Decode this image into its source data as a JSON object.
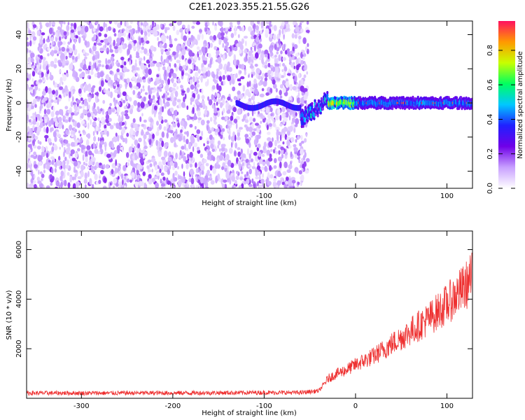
{
  "title": "C2E1.2023.355.21.55.G26",
  "chart_data": [
    {
      "type": "heatmap",
      "xlabel": "Height of straight line (km)",
      "ylabel": "Frequency (Hz)",
      "xlim": [
        -360,
        128
      ],
      "ylim": [
        -50,
        48
      ],
      "x_ticks": [
        -300,
        -200,
        -100,
        0,
        100
      ],
      "y_ticks": [
        -40,
        -20,
        0,
        20,
        40
      ],
      "grid": false,
      "colorbar": {
        "label": "Normalized spectral amplitude",
        "range": [
          0,
          0.97
        ],
        "ticks": [
          0.0,
          0.2,
          0.4,
          0.6,
          0.8
        ],
        "colormap": [
          "#ffffff",
          "#c8a0ff",
          "#7000e8",
          "#2020ff",
          "#00c8ff",
          "#00ff60",
          "#c8ff00",
          "#ff9900",
          "#ff1060"
        ]
      },
      "regions": [
        {
          "name": "noise",
          "x_range": [
            -360,
            -52
          ],
          "y_range": [
            -50,
            48
          ],
          "amplitude_range": [
            0.0,
            0.15
          ]
        },
        {
          "name": "signal_track",
          "x_range": [
            -130,
            128
          ],
          "frequency_hz": 0,
          "amplitude_range": [
            0.3,
            0.97
          ]
        }
      ]
    },
    {
      "type": "line",
      "xlabel": "Height of straight line (km)",
      "ylabel": "SNR (10 * v/v)",
      "xlim": [
        -360,
        128
      ],
      "ylim": [
        0,
        6750
      ],
      "x_ticks": [
        -300,
        -200,
        -100,
        0,
        100
      ],
      "y_ticks": [
        2000,
        4000,
        6000
      ],
      "grid": false,
      "series": [
        {
          "color": "#ee3030",
          "x": [
            -360,
            -300,
            -200,
            -100,
            -60,
            -40,
            -30,
            -20,
            -10,
            0,
            20,
            40,
            60,
            80,
            100,
            120,
            128
          ],
          "y": [
            210,
            210,
            215,
            230,
            230,
            300,
            800,
            1000,
            1150,
            1350,
            1700,
            2200,
            2700,
            3200,
            3800,
            4500,
            4900
          ]
        }
      ]
    }
  ]
}
